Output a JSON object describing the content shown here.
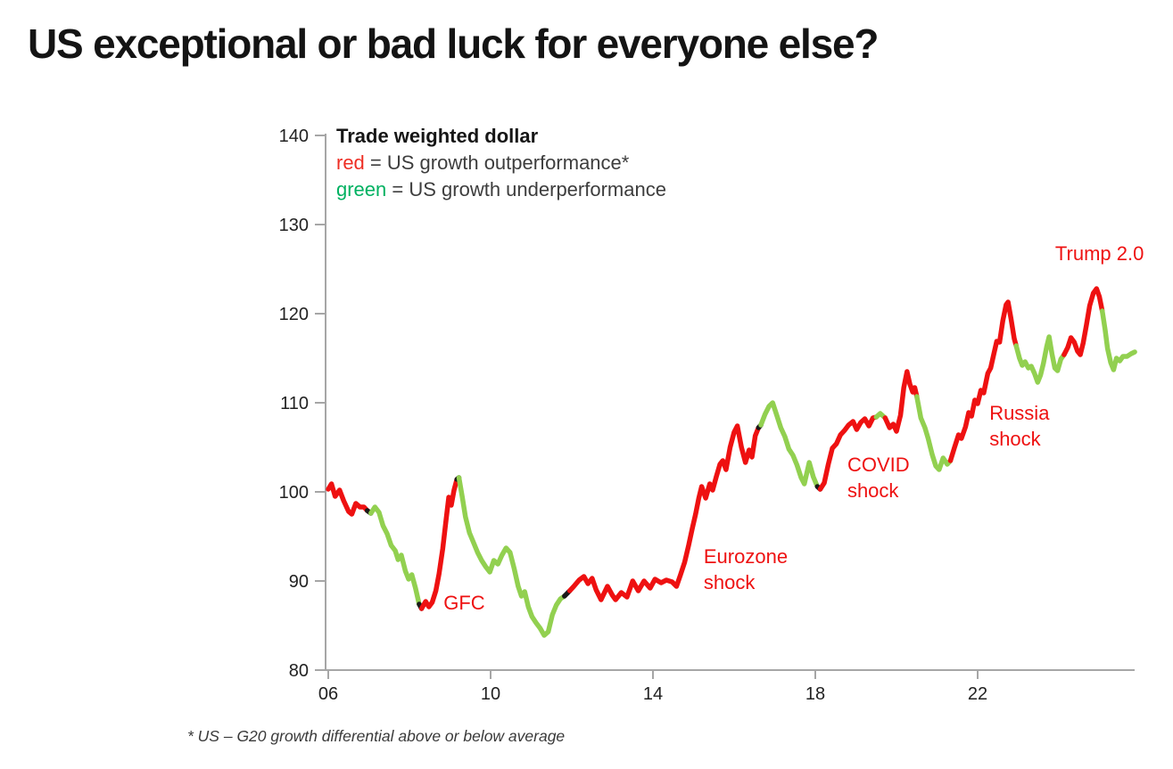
{
  "title": "US exceptional or bad luck for everyone else?",
  "footnote": "* US – G20 growth differential above or below average",
  "chart_data": {
    "type": "line",
    "title": "Trade weighted dollar",
    "legend": {
      "title": "Trade weighted dollar",
      "red_key": "red",
      "red_rest": " = US growth outperformance*",
      "green_key": "green",
      "green_rest": " = US growth underperformance",
      "position": "top-left-inside"
    },
    "x_axis": {
      "range": [
        2006,
        2025.9
      ],
      "ticks": [
        {
          "label": "06",
          "year": 2006
        },
        {
          "label": "10",
          "year": 2010
        },
        {
          "label": "14",
          "year": 2014
        },
        {
          "label": "18",
          "year": 2018
        },
        {
          "label": "22",
          "year": 2022
        }
      ]
    },
    "y_axis": {
      "range": [
        80,
        140
      ],
      "ticks": [
        140,
        130,
        120,
        110,
        100,
        90,
        80
      ]
    },
    "grid": false,
    "colors": {
      "red": "#ee1111",
      "green": "#92d050",
      "black": "#1a1a1a",
      "legend_red": "#ee2e24",
      "legend_green": "#00b161",
      "axis": "#a6a6a6",
      "tick_text": "#222222"
    },
    "annotations": [
      {
        "id": "gfc",
        "text": "GFC",
        "year": 2008.84,
        "value": 89.0,
        "color": "red"
      },
      {
        "id": "eurozone-shock",
        "text": "Eurozone\nshock",
        "year": 2015.25,
        "value": 94.2,
        "color": "red"
      },
      {
        "id": "covid-shock",
        "text": "COVID\nshock",
        "year": 2018.79,
        "value": 104.5,
        "color": "red"
      },
      {
        "id": "russia-shock",
        "text": "Russia\nshock",
        "year": 2022.29,
        "value": 110.3,
        "color": "red"
      },
      {
        "id": "trump-20",
        "text": "Trump 2.0",
        "year": 2023.91,
        "value": 128.2,
        "color": "red"
      }
    ],
    "series": [
      {
        "color": "red",
        "points": [
          [
            2006.0,
            100.3
          ],
          [
            2006.08,
            100.9
          ],
          [
            2006.17,
            99.5
          ],
          [
            2006.28,
            100.2
          ],
          [
            2006.38,
            99.0
          ],
          [
            2006.5,
            97.8
          ],
          [
            2006.58,
            97.5
          ],
          [
            2006.68,
            98.7
          ],
          [
            2006.78,
            98.3
          ],
          [
            2006.88,
            98.3
          ],
          [
            2006.96,
            97.9
          ]
        ]
      },
      {
        "color": "black",
        "points": [
          [
            2006.96,
            97.9
          ],
          [
            2007.05,
            97.6
          ]
        ]
      },
      {
        "color": "green",
        "points": [
          [
            2007.05,
            97.6
          ],
          [
            2007.15,
            98.3
          ],
          [
            2007.25,
            97.7
          ],
          [
            2007.35,
            96.2
          ],
          [
            2007.45,
            95.3
          ],
          [
            2007.55,
            94.0
          ],
          [
            2007.65,
            93.4
          ],
          [
            2007.72,
            92.4
          ],
          [
            2007.8,
            92.9
          ],
          [
            2007.9,
            91.1
          ],
          [
            2007.98,
            90.2
          ],
          [
            2008.06,
            90.7
          ],
          [
            2008.15,
            89.2
          ],
          [
            2008.24,
            87.4
          ]
        ]
      },
      {
        "color": "black",
        "points": [
          [
            2008.24,
            87.4
          ],
          [
            2008.3,
            86.9
          ]
        ]
      },
      {
        "color": "red",
        "points": [
          [
            2008.3,
            86.9
          ],
          [
            2008.4,
            87.7
          ],
          [
            2008.48,
            87.1
          ],
          [
            2008.56,
            87.6
          ],
          [
            2008.65,
            88.9
          ],
          [
            2008.73,
            90.8
          ],
          [
            2008.82,
            93.6
          ],
          [
            2008.9,
            96.8
          ],
          [
            2008.97,
            99.4
          ],
          [
            2009.03,
            98.5
          ],
          [
            2009.1,
            100.2
          ],
          [
            2009.17,
            101.4
          ]
        ]
      },
      {
        "color": "black",
        "points": [
          [
            2009.17,
            101.4
          ],
          [
            2009.22,
            101.6
          ]
        ]
      },
      {
        "color": "green",
        "points": [
          [
            2009.22,
            101.6
          ],
          [
            2009.3,
            99.5
          ],
          [
            2009.38,
            97.2
          ],
          [
            2009.48,
            95.4
          ],
          [
            2009.58,
            94.3
          ],
          [
            2009.68,
            93.2
          ],
          [
            2009.78,
            92.3
          ],
          [
            2009.88,
            91.6
          ],
          [
            2009.98,
            91.0
          ],
          [
            2010.08,
            92.3
          ],
          [
            2010.18,
            91.9
          ],
          [
            2010.28,
            92.9
          ],
          [
            2010.38,
            93.7
          ],
          [
            2010.48,
            93.2
          ],
          [
            2010.58,
            91.4
          ],
          [
            2010.68,
            89.4
          ],
          [
            2010.76,
            88.3
          ],
          [
            2010.84,
            88.8
          ],
          [
            2010.93,
            87.1
          ],
          [
            2011.02,
            86.0
          ],
          [
            2011.12,
            85.3
          ],
          [
            2011.22,
            84.7
          ],
          [
            2011.32,
            83.9
          ],
          [
            2011.42,
            84.3
          ],
          [
            2011.52,
            86.2
          ],
          [
            2011.62,
            87.3
          ],
          [
            2011.72,
            88.0
          ],
          [
            2011.82,
            88.3
          ]
        ]
      },
      {
        "color": "black",
        "points": [
          [
            2011.82,
            88.3
          ],
          [
            2011.95,
            88.9
          ]
        ]
      },
      {
        "color": "red",
        "points": [
          [
            2011.95,
            88.9
          ],
          [
            2012.05,
            89.4
          ],
          [
            2012.18,
            90.1
          ],
          [
            2012.3,
            90.5
          ],
          [
            2012.4,
            89.7
          ],
          [
            2012.5,
            90.3
          ],
          [
            2012.6,
            89.0
          ],
          [
            2012.72,
            87.9
          ],
          [
            2012.88,
            89.4
          ],
          [
            2013.0,
            88.4
          ],
          [
            2013.08,
            87.9
          ],
          [
            2013.22,
            88.7
          ],
          [
            2013.36,
            88.2
          ],
          [
            2013.5,
            90.0
          ],
          [
            2013.64,
            88.9
          ],
          [
            2013.78,
            90.0
          ],
          [
            2013.93,
            89.2
          ],
          [
            2014.05,
            90.2
          ],
          [
            2014.2,
            89.8
          ],
          [
            2014.33,
            90.1
          ],
          [
            2014.47,
            89.9
          ],
          [
            2014.58,
            89.4
          ],
          [
            2014.68,
            90.7
          ],
          [
            2014.78,
            92.1
          ],
          [
            2014.88,
            94.0
          ],
          [
            2014.97,
            95.9
          ],
          [
            2015.05,
            97.5
          ],
          [
            2015.13,
            99.3
          ],
          [
            2015.2,
            100.6
          ],
          [
            2015.3,
            99.3
          ],
          [
            2015.4,
            100.9
          ],
          [
            2015.47,
            100.2
          ],
          [
            2015.56,
            101.7
          ],
          [
            2015.65,
            103.1
          ],
          [
            2015.72,
            103.5
          ],
          [
            2015.8,
            102.5
          ],
          [
            2015.9,
            105.0
          ],
          [
            2016.0,
            106.7
          ],
          [
            2016.08,
            107.4
          ],
          [
            2016.18,
            105.0
          ],
          [
            2016.28,
            103.3
          ],
          [
            2016.37,
            104.7
          ],
          [
            2016.44,
            103.9
          ],
          [
            2016.52,
            106.3
          ],
          [
            2016.6,
            107.2
          ]
        ]
      },
      {
        "color": "black",
        "points": [
          [
            2016.6,
            107.2
          ],
          [
            2016.66,
            107.5
          ]
        ]
      },
      {
        "color": "green",
        "points": [
          [
            2016.66,
            107.5
          ],
          [
            2016.76,
            108.7
          ],
          [
            2016.86,
            109.6
          ],
          [
            2016.95,
            110.0
          ],
          [
            2017.05,
            108.6
          ],
          [
            2017.15,
            107.2
          ],
          [
            2017.25,
            106.2
          ],
          [
            2017.35,
            104.8
          ],
          [
            2017.45,
            104.1
          ],
          [
            2017.55,
            103.0
          ],
          [
            2017.65,
            101.6
          ],
          [
            2017.73,
            100.9
          ],
          [
            2017.85,
            103.3
          ],
          [
            2017.95,
            101.7
          ],
          [
            2018.05,
            100.6
          ]
        ]
      },
      {
        "color": "black",
        "points": [
          [
            2018.05,
            100.6
          ],
          [
            2018.12,
            100.3
          ]
        ]
      },
      {
        "color": "red",
        "points": [
          [
            2018.12,
            100.3
          ],
          [
            2018.22,
            101.0
          ],
          [
            2018.32,
            103.1
          ],
          [
            2018.42,
            104.9
          ],
          [
            2018.52,
            105.4
          ],
          [
            2018.62,
            106.4
          ],
          [
            2018.72,
            106.9
          ],
          [
            2018.82,
            107.5
          ],
          [
            2018.93,
            107.9
          ],
          [
            2019.02,
            107.0
          ],
          [
            2019.12,
            107.8
          ],
          [
            2019.22,
            108.2
          ],
          [
            2019.32,
            107.4
          ],
          [
            2019.42,
            108.3
          ],
          [
            2019.5,
            108.4
          ]
        ]
      },
      {
        "color": "green",
        "points": [
          [
            2019.5,
            108.4
          ],
          [
            2019.6,
            108.8
          ],
          [
            2019.72,
            108.3
          ]
        ]
      },
      {
        "color": "red",
        "points": [
          [
            2019.72,
            108.3
          ],
          [
            2019.83,
            107.2
          ],
          [
            2019.92,
            107.6
          ],
          [
            2020.0,
            106.8
          ],
          [
            2020.1,
            108.6
          ],
          [
            2020.18,
            111.7
          ],
          [
            2020.26,
            113.5
          ],
          [
            2020.33,
            112.1
          ],
          [
            2020.4,
            111.2
          ],
          [
            2020.45,
            111.7
          ],
          [
            2020.5,
            110.7
          ]
        ]
      },
      {
        "color": "green",
        "points": [
          [
            2020.5,
            110.7
          ],
          [
            2020.6,
            108.3
          ],
          [
            2020.7,
            107.2
          ],
          [
            2020.78,
            106.0
          ],
          [
            2020.88,
            104.2
          ],
          [
            2020.97,
            102.9
          ],
          [
            2021.05,
            102.5
          ],
          [
            2021.15,
            103.8
          ],
          [
            2021.25,
            103.1
          ],
          [
            2021.33,
            103.5
          ]
        ]
      },
      {
        "color": "red",
        "points": [
          [
            2021.33,
            103.5
          ],
          [
            2021.43,
            105.0
          ],
          [
            2021.53,
            106.4
          ],
          [
            2021.6,
            106.0
          ],
          [
            2021.7,
            107.3
          ],
          [
            2021.78,
            108.9
          ],
          [
            2021.85,
            108.5
          ],
          [
            2021.93,
            110.3
          ],
          [
            2022.0,
            109.9
          ],
          [
            2022.08,
            111.4
          ],
          [
            2022.15,
            111.1
          ],
          [
            2022.25,
            113.3
          ],
          [
            2022.32,
            113.9
          ],
          [
            2022.4,
            115.5
          ],
          [
            2022.47,
            116.9
          ],
          [
            2022.54,
            116.8
          ],
          [
            2022.62,
            119.2
          ],
          [
            2022.7,
            121.0
          ],
          [
            2022.75,
            121.3
          ],
          [
            2022.82,
            119.5
          ],
          [
            2022.9,
            117.2
          ],
          [
            2022.95,
            116.4
          ]
        ]
      },
      {
        "color": "green",
        "points": [
          [
            2022.95,
            116.4
          ],
          [
            2023.03,
            115.0
          ],
          [
            2023.1,
            114.2
          ],
          [
            2023.17,
            114.6
          ],
          [
            2023.25,
            113.9
          ],
          [
            2023.32,
            114.1
          ],
          [
            2023.4,
            113.3
          ],
          [
            2023.48,
            112.3
          ],
          [
            2023.55,
            113.1
          ],
          [
            2023.62,
            114.4
          ],
          [
            2023.7,
            116.3
          ],
          [
            2023.76,
            117.4
          ],
          [
            2023.83,
            115.5
          ],
          [
            2023.9,
            113.9
          ],
          [
            2023.97,
            113.6
          ],
          [
            2024.05,
            114.9
          ],
          [
            2024.13,
            115.4
          ]
        ]
      },
      {
        "color": "red",
        "points": [
          [
            2024.13,
            115.4
          ],
          [
            2024.22,
            116.2
          ],
          [
            2024.3,
            117.3
          ],
          [
            2024.38,
            116.8
          ],
          [
            2024.46,
            115.8
          ],
          [
            2024.53,
            115.4
          ],
          [
            2024.6,
            116.7
          ],
          [
            2024.68,
            118.7
          ],
          [
            2024.76,
            120.9
          ],
          [
            2024.85,
            122.3
          ],
          [
            2024.93,
            122.8
          ],
          [
            2025.0,
            121.9
          ],
          [
            2025.07,
            120.3
          ]
        ]
      },
      {
        "color": "green",
        "points": [
          [
            2025.07,
            120.3
          ],
          [
            2025.14,
            118.2
          ],
          [
            2025.2,
            116.1
          ],
          [
            2025.28,
            114.5
          ],
          [
            2025.35,
            113.7
          ],
          [
            2025.42,
            115.0
          ],
          [
            2025.5,
            114.7
          ],
          [
            2025.58,
            115.2
          ],
          [
            2025.68,
            115.2
          ],
          [
            2025.78,
            115.5
          ],
          [
            2025.87,
            115.7
          ]
        ]
      }
    ]
  }
}
